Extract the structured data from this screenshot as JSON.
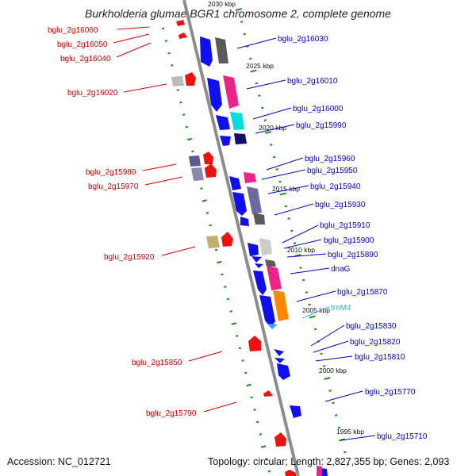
{
  "title": "Burkholderia glumae BGR1 chromosome 2, complete genome",
  "footer": {
    "accession": "Accession: NC_012721",
    "stats": "Topology: circular; Length: 2,827,355 bp; Genes: 2,093"
  },
  "colors": {
    "backbone": "#8c8c8c",
    "left_strand_genes": "#ee1111",
    "right_strand_genes": "#1111dd",
    "left_labels": "#cc0000",
    "right_labels": "#0000cc",
    "trna_label": "#33aaee",
    "ticks": "#1a8a1a"
  },
  "scale_labels": [
    "2030 kbp",
    "2025 kbp",
    "2020 kbp",
    "2015 kbp",
    "2010 kbp",
    "2005 kbp",
    "2000 kbp",
    "1995 kbp"
  ],
  "left_labels": [
    "bglu_2g16060",
    "bglu_2g16050",
    "bglu_2g16040",
    "bglu_2g16020",
    "bglu_2g15980",
    "bglu_2g15970",
    "bglu_2g15920",
    "bglu_2g15850",
    "bglu_2g15790"
  ],
  "right_labels": [
    "bglu_2g16030",
    "bglu_2g16010",
    "bglu_2g16000",
    "bglu_2g15990",
    "bglu_2g15960",
    "bglu_2g15950",
    "bglu_2g15940",
    "bglu_2g15930",
    "bglu_2g15910",
    "bglu_2g15900",
    "bglu_2g15890",
    "dnaG",
    "bglu_2g15870",
    "trnM4",
    "bglu_2g15830",
    "bglu_2g15820",
    "bglu_2g15810",
    "bglu_2g15770",
    "bglu_2g15710"
  ]
}
